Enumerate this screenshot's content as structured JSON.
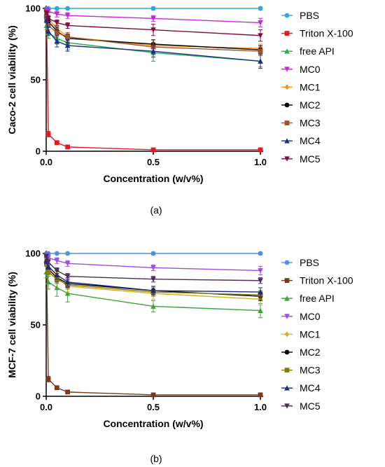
{
  "chart_data": [
    {
      "type": "line",
      "caption": "(a)",
      "xlabel": "Concentration (w/v%)",
      "ylabel": "Caco-2 cell viability (%)",
      "xlim": [
        0,
        1.0
      ],
      "ylim": [
        0,
        100
      ],
      "xticks": [
        {
          "value": 0.0,
          "label": "0.0"
        },
        {
          "value": 0.5,
          "label": "0.5"
        },
        {
          "value": 1.0,
          "label": "1.0"
        }
      ],
      "yticks": [
        {
          "value": 0,
          "label": "0"
        },
        {
          "value": 50,
          "label": "50"
        },
        {
          "value": 100,
          "label": "100"
        }
      ],
      "x": [
        0.001,
        0.01,
        0.05,
        0.1,
        0.5,
        1.0
      ],
      "legend_position": "right",
      "series": [
        {
          "name": "PBS",
          "color": "#29a9e0",
          "marker": "circle",
          "values": [
            100,
            100,
            100,
            100,
            100,
            100
          ],
          "errors": [
            0.5,
            0.5,
            0.5,
            0.5,
            1,
            1
          ]
        },
        {
          "name": "Triton X-100",
          "color": "#e41a1c",
          "marker": "square",
          "values": [
            99,
            12,
            6,
            3,
            1,
            1
          ],
          "errors": [
            1,
            2,
            1,
            0.5,
            0.5,
            0.5
          ]
        },
        {
          "name": "free API",
          "color": "#22b14c",
          "marker": "triangle-up",
          "values": [
            88,
            83,
            79,
            76,
            69,
            63
          ],
          "errors": [
            3,
            4,
            4,
            5,
            6,
            4
          ]
        },
        {
          "name": "MC0",
          "color": "#c42bd1",
          "marker": "triangle-down",
          "values": [
            99,
            98,
            96,
            95,
            93,
            90
          ],
          "errors": [
            1,
            1,
            2,
            2,
            2,
            3
          ]
        },
        {
          "name": "MC1",
          "color": "#f5941d",
          "marker": "diamond",
          "values": [
            96,
            93,
            86,
            80,
            74,
            72
          ],
          "errors": [
            2,
            2,
            3,
            3,
            4,
            3
          ]
        },
        {
          "name": "MC2",
          "color": "#000000",
          "marker": "circle",
          "values": [
            95,
            91,
            84,
            79,
            75,
            71
          ],
          "errors": [
            2,
            2,
            3,
            3,
            3,
            3
          ]
        },
        {
          "name": "MC3",
          "color": "#a0522d",
          "marker": "square",
          "values": [
            94,
            88,
            83,
            80,
            73,
            70
          ],
          "errors": [
            2,
            3,
            3,
            3,
            3,
            3
          ]
        },
        {
          "name": "MC4",
          "color": "#1f2d8a",
          "marker": "triangle-up",
          "values": [
            92,
            84,
            77,
            74,
            70,
            63
          ],
          "errors": [
            2,
            3,
            4,
            4,
            4,
            5
          ]
        },
        {
          "name": "MC5",
          "color": "#7a1040",
          "marker": "triangle-down",
          "values": [
            97,
            93,
            90,
            88,
            85,
            81
          ],
          "errors": [
            1,
            2,
            2,
            2,
            4,
            4
          ]
        }
      ]
    },
    {
      "type": "line",
      "caption": "(b)",
      "xlabel": "Concentration (w/v%)",
      "ylabel": "MCF-7 cell viability (%)",
      "xlim": [
        0,
        1.0
      ],
      "ylim": [
        0,
        100
      ],
      "xticks": [
        {
          "value": 0.0,
          "label": "0.0"
        },
        {
          "value": 0.5,
          "label": "0.5"
        },
        {
          "value": 1.0,
          "label": "1.0"
        }
      ],
      "yticks": [
        {
          "value": 0,
          "label": "0"
        },
        {
          "value": 50,
          "label": "50"
        },
        {
          "value": 100,
          "label": "100"
        }
      ],
      "x": [
        0.001,
        0.01,
        0.05,
        0.1,
        0.5,
        1.0
      ],
      "legend_position": "right",
      "series": [
        {
          "name": "PBS",
          "color": "#4f8fe6",
          "marker": "circle",
          "values": [
            100,
            100,
            100,
            100,
            100,
            100
          ],
          "errors": [
            0.5,
            0.5,
            0.5,
            0.5,
            1,
            1
          ]
        },
        {
          "name": "Triton X-100",
          "color": "#7a3a1a",
          "marker": "square",
          "values": [
            99,
            12,
            6,
            3,
            1,
            1
          ],
          "errors": [
            1,
            2,
            1,
            0.5,
            0.5,
            0.5
          ]
        },
        {
          "name": "free API",
          "color": "#3aa33a",
          "marker": "triangle-up",
          "values": [
            87,
            80,
            76,
            72,
            63,
            60
          ],
          "errors": [
            4,
            5,
            6,
            6,
            4,
            5
          ]
        },
        {
          "name": "MC0",
          "color": "#9a4fe0",
          "marker": "triangle-down",
          "values": [
            99,
            97,
            95,
            93,
            90,
            88
          ],
          "errors": [
            1,
            2,
            2,
            2,
            2,
            3
          ]
        },
        {
          "name": "MC1",
          "color": "#d4b21a",
          "marker": "diamond",
          "values": [
            95,
            90,
            83,
            77,
            72,
            68
          ],
          "errors": [
            2,
            3,
            4,
            4,
            4,
            4
          ]
        },
        {
          "name": "MC2",
          "color": "#000000",
          "marker": "circle",
          "values": [
            94,
            89,
            83,
            79,
            74,
            70
          ],
          "errors": [
            2,
            3,
            3,
            3,
            3,
            3
          ]
        },
        {
          "name": "MC3",
          "color": "#8a7a10",
          "marker": "square",
          "values": [
            93,
            87,
            82,
            78,
            73,
            71
          ],
          "errors": [
            2,
            3,
            3,
            3,
            3,
            3
          ]
        },
        {
          "name": "MC4",
          "color": "#1a2a7a",
          "marker": "triangle-up",
          "values": [
            95,
            91,
            85,
            80,
            74,
            73
          ],
          "errors": [
            2,
            2,
            3,
            3,
            3,
            3
          ]
        },
        {
          "name": "MC5",
          "color": "#4a2a5a",
          "marker": "triangle-down",
          "values": [
            98,
            94,
            88,
            84,
            82,
            81
          ],
          "errors": [
            1,
            2,
            2,
            2,
            2,
            2
          ]
        }
      ]
    }
  ]
}
